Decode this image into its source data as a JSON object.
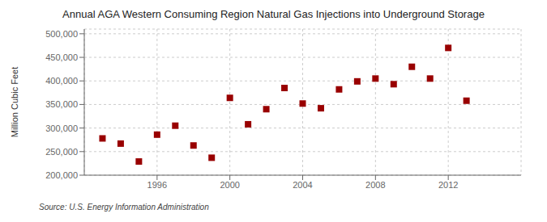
{
  "chart_data": {
    "type": "scatter",
    "title": "Annual AGA Western Consuming Region Natural Gas Injections into Underground Storage",
    "ylabel": "Million Cubic Feet",
    "source": "Source: U.S. Energy Information Administration",
    "x": [
      1993,
      1994,
      1995,
      1996,
      1997,
      1998,
      1999,
      2000,
      2001,
      2002,
      2003,
      2004,
      2005,
      2006,
      2007,
      2008,
      2009,
      2010,
      2011,
      2012,
      2013
    ],
    "values": [
      278000,
      267000,
      229000,
      286000,
      305000,
      263000,
      237000,
      364000,
      308000,
      340000,
      385000,
      352000,
      342000,
      382000,
      399000,
      405000,
      393000,
      430000,
      405000,
      470000,
      358000
    ],
    "color": "#990000",
    "marker": "square",
    "xlim": [
      1992,
      2016
    ],
    "xticks": [
      1996,
      2000,
      2004,
      2008,
      2012
    ],
    "ylim": [
      200000,
      510000
    ],
    "yticks": [
      {
        "value": 200000,
        "label": "200,000"
      },
      {
        "value": 250000,
        "label": "250,000"
      },
      {
        "value": 300000,
        "label": "300,000"
      },
      {
        "value": 350000,
        "label": "350,000"
      },
      {
        "value": 400000,
        "label": "400,000"
      },
      {
        "value": 450000,
        "label": "450,000"
      },
      {
        "value": 500000,
        "label": "500,000"
      }
    ],
    "grid": true
  }
}
